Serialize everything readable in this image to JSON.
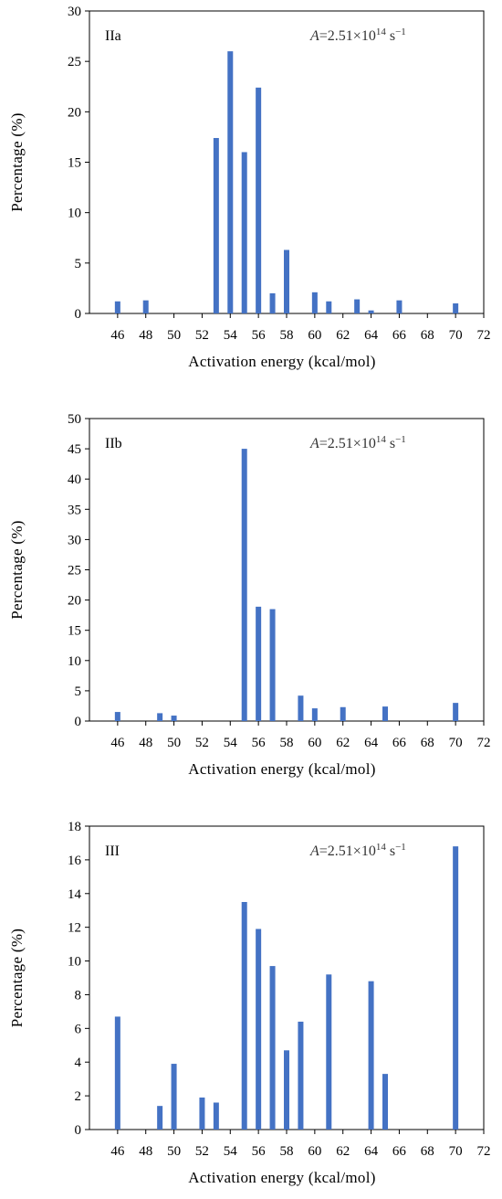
{
  "chart_data": [
    {
      "type": "bar",
      "panel_label": "IIa",
      "formula": {
        "italic": "A",
        "main": "=2.51×10",
        "sup": "14",
        "unit": " s",
        "unit_sup": "−1"
      },
      "xlabel": "Activation energy (kcal/mol)",
      "ylabel": "Percentage (%)",
      "xlim": [
        44,
        72
      ],
      "ylim": [
        0,
        30
      ],
      "xticks": [
        46,
        48,
        50,
        52,
        54,
        56,
        58,
        60,
        62,
        64,
        66,
        68,
        70,
        72
      ],
      "yticks": [
        0,
        5,
        10,
        15,
        20,
        25,
        30
      ],
      "bar_color": "#4472C4",
      "x": [
        46,
        48,
        53,
        54,
        55,
        56,
        57,
        58,
        60,
        61,
        63,
        64,
        66,
        70
      ],
      "values": [
        1.2,
        1.3,
        17.4,
        26.0,
        16.0,
        22.4,
        2.0,
        6.3,
        2.1,
        1.2,
        1.4,
        0.3,
        1.3,
        1.0
      ]
    },
    {
      "type": "bar",
      "panel_label": "IIb",
      "formula": {
        "italic": "A",
        "main": "=2.51×10",
        "sup": "14",
        "unit": " s",
        "unit_sup": "−1"
      },
      "xlabel": "Activation energy (kcal/mol)",
      "ylabel": "Percentage (%)",
      "xlim": [
        44,
        72
      ],
      "ylim": [
        0,
        50
      ],
      "xticks": [
        46,
        48,
        50,
        52,
        54,
        56,
        58,
        60,
        62,
        64,
        66,
        68,
        70,
        72
      ],
      "yticks": [
        0,
        5,
        10,
        15,
        20,
        25,
        30,
        35,
        40,
        45,
        50
      ],
      "bar_color": "#4472C4",
      "x": [
        46,
        49,
        50,
        55,
        56,
        57,
        59,
        60,
        62,
        65,
        70
      ],
      "values": [
        1.5,
        1.3,
        0.9,
        45.0,
        18.9,
        18.5,
        4.2,
        2.1,
        2.3,
        2.4,
        3.0
      ]
    },
    {
      "type": "bar",
      "panel_label": "III",
      "formula": {
        "italic": "A",
        "main": "=2.51×10",
        "sup": "14",
        "unit": " s",
        "unit_sup": "−1"
      },
      "xlabel": "Activation energy (kcal/mol)",
      "ylabel": "Percentage (%)",
      "xlim": [
        44,
        72
      ],
      "ylim": [
        0,
        18
      ],
      "xticks": [
        46,
        48,
        50,
        52,
        54,
        56,
        58,
        60,
        62,
        64,
        66,
        68,
        70,
        72
      ],
      "yticks": [
        0,
        2,
        4,
        6,
        8,
        10,
        12,
        14,
        16,
        18
      ],
      "bar_color": "#4472C4",
      "x": [
        46,
        49,
        50,
        52,
        53,
        55,
        56,
        57,
        58,
        59,
        61,
        64,
        65,
        70
      ],
      "values": [
        6.7,
        1.4,
        3.9,
        1.9,
        1.6,
        13.5,
        11.9,
        9.7,
        4.7,
        6.4,
        9.2,
        8.8,
        3.3,
        16.8
      ]
    }
  ]
}
